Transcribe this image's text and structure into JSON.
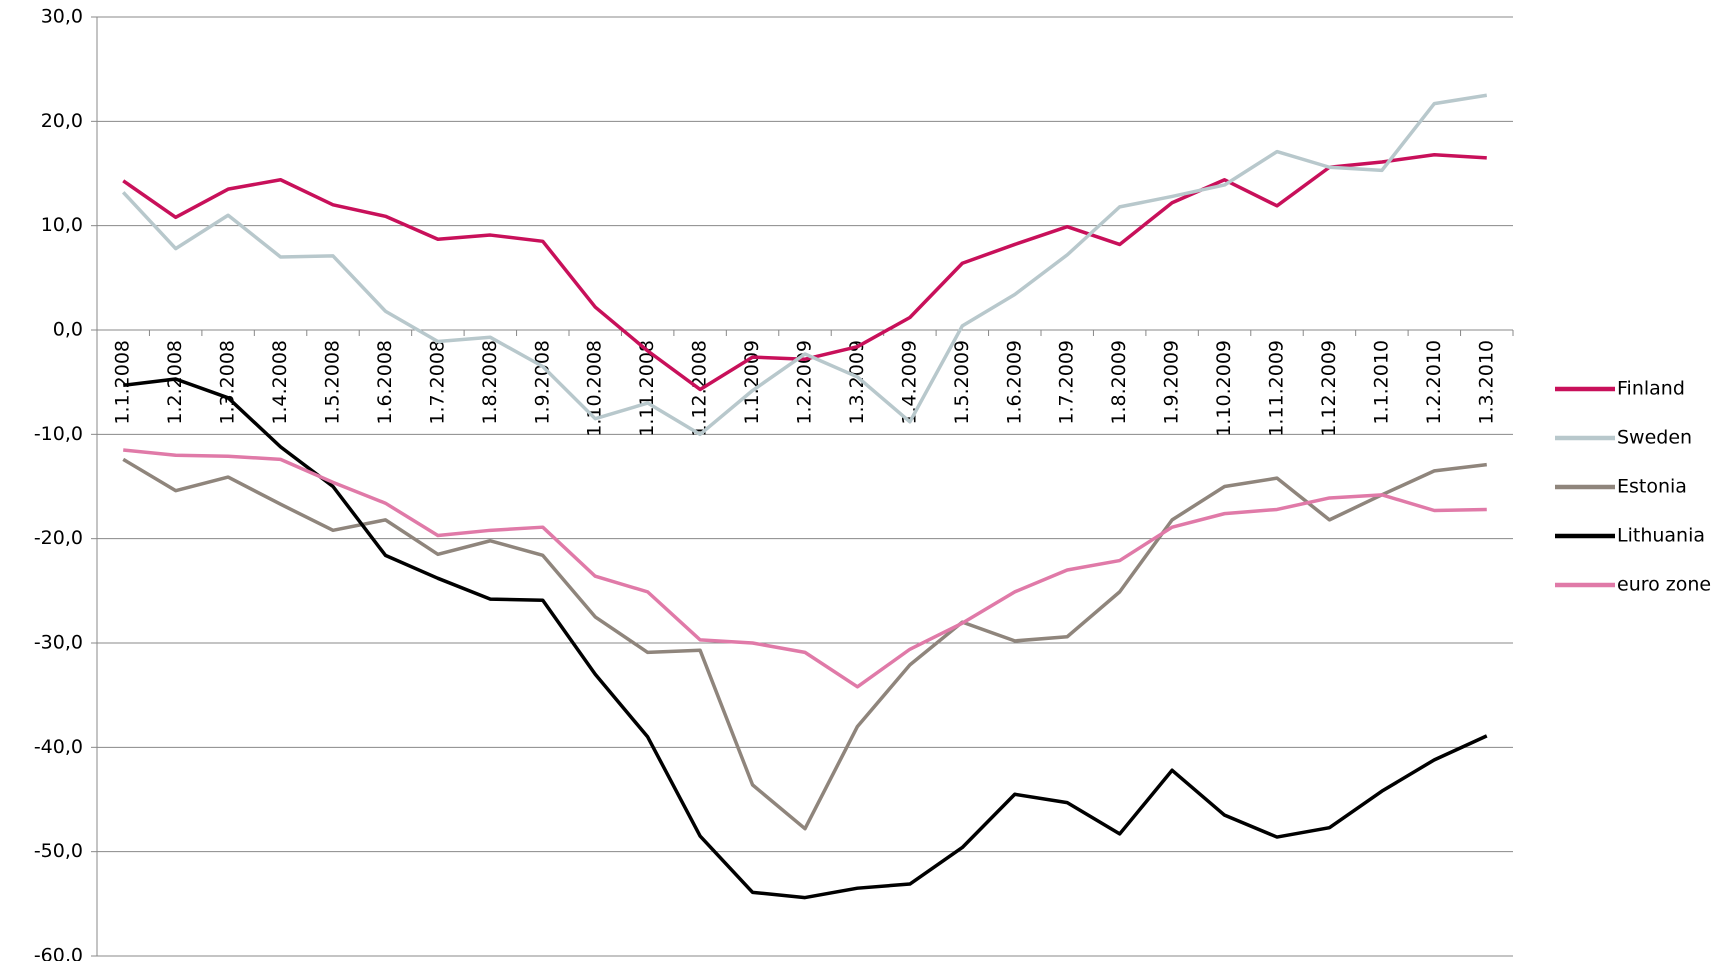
{
  "chart_data": {
    "type": "line",
    "categories": [
      "1.1.2008",
      "1.2.2008",
      "1.3.2008",
      "1.4.2008",
      "1.5.2008",
      "1.6.2008",
      "1.7.2008",
      "1.8.2008",
      "1.9.2008",
      "1.10.2008",
      "1.11.2008",
      "1.12.2008",
      "1.1.2009",
      "1.2.2009",
      "1.3.2009",
      "1.4.2009",
      "1.5.2009",
      "1.6.2009",
      "1.7.2009",
      "1.8.2009",
      "1.9.2009",
      "1.10.2009",
      "1.11.2009",
      "1.12.2009",
      "1.1.2010",
      "1.2.2010",
      "1.3.2010"
    ],
    "series": [
      {
        "name": "Finland",
        "color": "#c8105a",
        "values": [
          14.3,
          10.8,
          13.5,
          14.4,
          12.0,
          10.9,
          8.7,
          9.1,
          8.5,
          2.2,
          -2.0,
          -5.7,
          -2.6,
          -2.8,
          -1.6,
          1.2,
          6.4,
          8.2,
          9.9,
          8.2,
          12.2,
          14.4,
          11.9,
          15.6,
          16.1,
          16.8,
          16.5
        ]
      },
      {
        "name": "Sweden",
        "color": "#b8c8cc",
        "values": [
          13.2,
          7.8,
          11.0,
          7.0,
          7.1,
          1.8,
          -1.1,
          -0.7,
          -3.5,
          -8.5,
          -7.0,
          -10.0,
          -5.8,
          -2.3,
          -4.5,
          -8.8,
          0.4,
          3.4,
          7.2,
          11.8,
          12.8,
          13.9,
          17.1,
          15.6,
          15.3,
          21.7,
          22.5
        ]
      },
      {
        "name": "Estonia",
        "color": "#8f857c",
        "values": [
          -12.4,
          -15.4,
          -14.1,
          -16.7,
          -19.2,
          -18.2,
          -21.5,
          -20.2,
          -21.6,
          -27.5,
          -30.9,
          -30.7,
          -43.6,
          -47.8,
          -38.0,
          -32.1,
          -28.0,
          -29.8,
          -29.4,
          -25.1,
          -18.2,
          -15.0,
          -14.2,
          -18.2,
          -15.8,
          -13.5,
          -12.9
        ]
      },
      {
        "name": "Lithuania",
        "color": "#000000",
        "values": [
          -5.3,
          -4.7,
          -6.5,
          -11.2,
          -15.0,
          -21.6,
          -23.8,
          -25.8,
          -25.9,
          -33.0,
          -39.0,
          -48.5,
          -53.9,
          -54.4,
          -53.5,
          -53.1,
          -49.6,
          -44.5,
          -45.3,
          -48.3,
          -42.2,
          -46.5,
          -48.6,
          -47.7,
          -44.2,
          -41.2,
          -38.9
        ]
      },
      {
        "name": "euro zone",
        "color": "#e07aa8",
        "values": [
          -11.5,
          -12.0,
          -12.1,
          -12.4,
          -14.6,
          -16.6,
          -19.7,
          -19.2,
          -18.9,
          -23.6,
          -25.1,
          -29.7,
          -30.0,
          -30.9,
          -34.2,
          -30.6,
          -28.1,
          -25.1,
          -23.0,
          -22.1,
          -18.9,
          -17.6,
          -17.2,
          -16.1,
          -15.8,
          -17.3,
          -17.2
        ]
      }
    ],
    "ylim": [
      -60,
      30
    ],
    "yticks": [
      {
        "value": -60,
        "label": "-60,0"
      },
      {
        "value": -50,
        "label": "-50,0"
      },
      {
        "value": -40,
        "label": "-40,0"
      },
      {
        "value": -30,
        "label": "-30,0"
      },
      {
        "value": -20,
        "label": "-20,0"
      },
      {
        "value": -10,
        "label": "-10,0"
      },
      {
        "value": 0,
        "label": "0,0"
      },
      {
        "value": 10,
        "label": "10,0"
      },
      {
        "value": 20,
        "label": "20,0"
      },
      {
        "value": 30,
        "label": "30,0"
      }
    ],
    "grid": true,
    "legend": "right"
  }
}
